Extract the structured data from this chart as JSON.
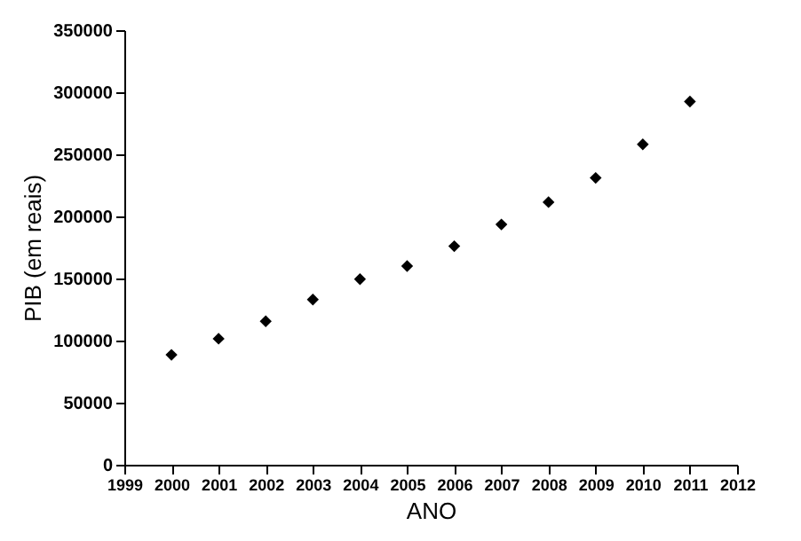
{
  "chart_data": {
    "type": "scatter",
    "xlabel": "ANO",
    "ylabel": "PIB  (em reais)",
    "x": [
      2000,
      2001,
      2002,
      2003,
      2004,
      2005,
      2006,
      2007,
      2008,
      2009,
      2010,
      2011
    ],
    "series": [
      {
        "color": "#000000",
        "values": [
          88500,
          101500,
          115500,
          133000,
          149500,
          160000,
          176000,
          193500,
          211500,
          231000,
          258000,
          292500
        ]
      }
    ],
    "xlim": [
      1999,
      2012
    ],
    "xticks": [
      1999,
      2000,
      2001,
      2002,
      2003,
      2004,
      2005,
      2006,
      2007,
      2008,
      2009,
      2010,
      2011,
      2012
    ],
    "ylim": [
      0,
      350000
    ],
    "yticks": [
      0,
      50000,
      100000,
      150000,
      200000,
      250000,
      300000,
      350000
    ],
    "grid": false,
    "legend": false,
    "marker": "diamond"
  }
}
